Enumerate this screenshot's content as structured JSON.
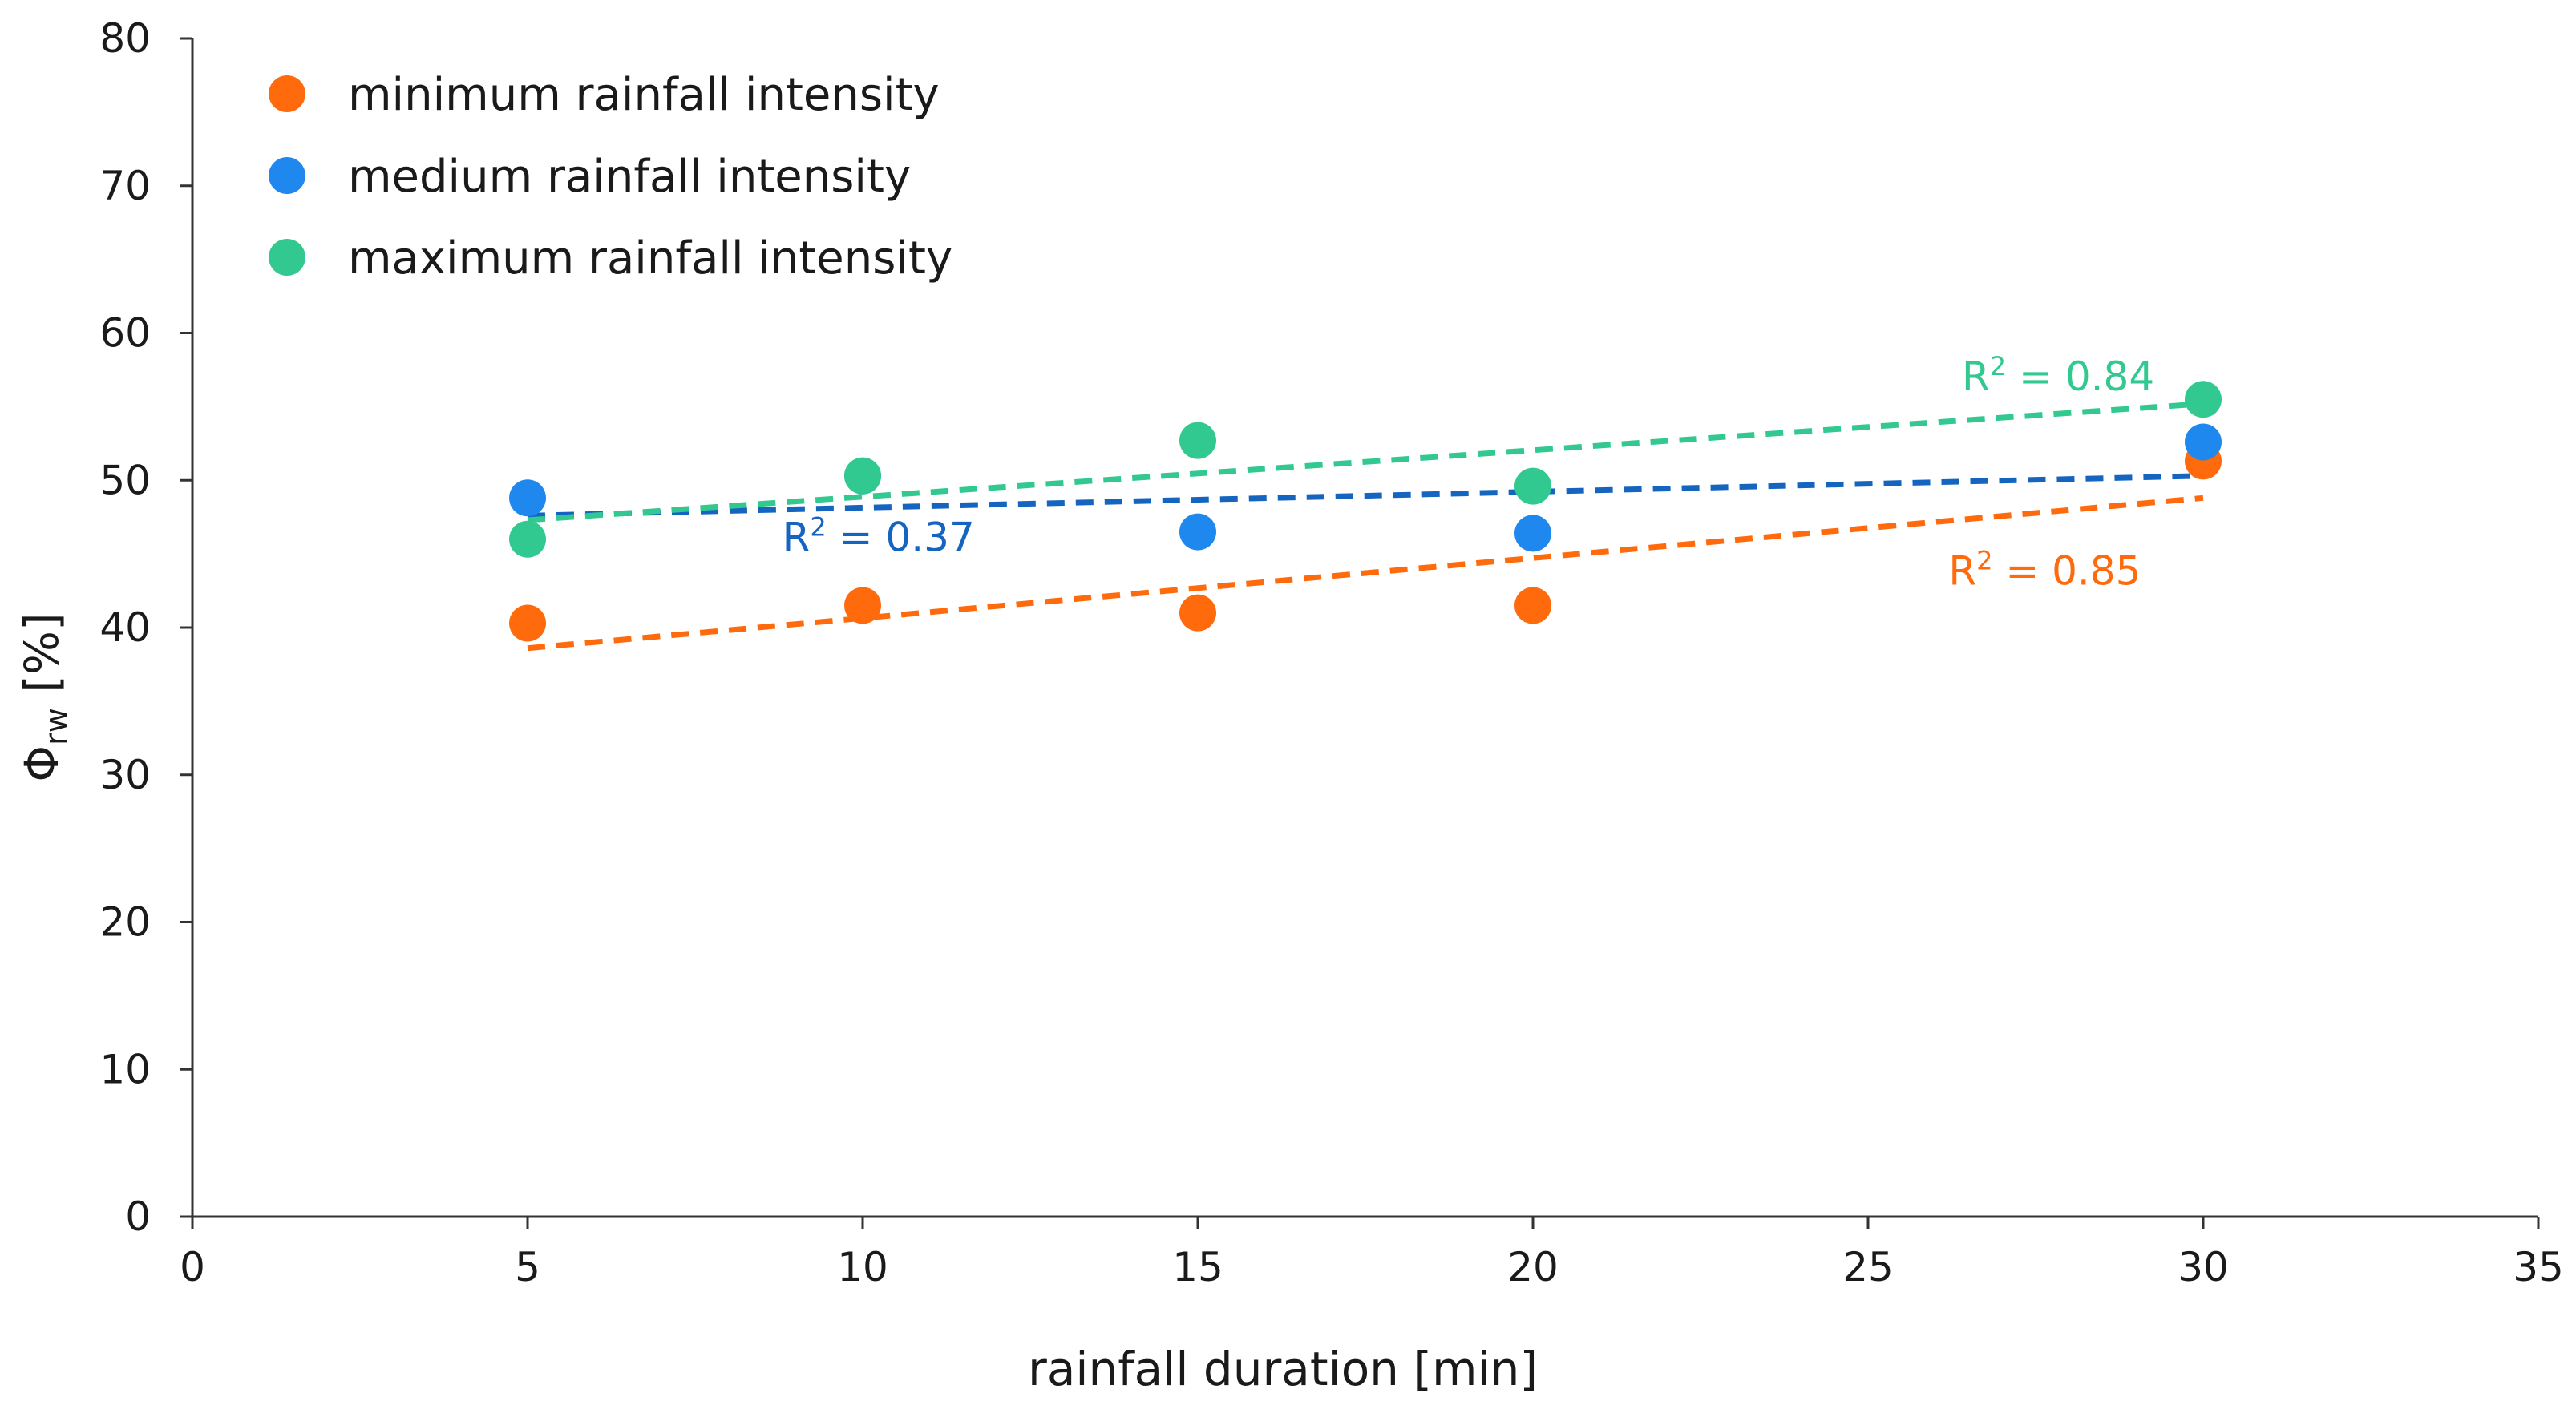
{
  "chart_data": {
    "type": "scatter",
    "xlabel": "rainfall duration [min]",
    "ylabel": {
      "base": "Φ",
      "subscript": "rw",
      "unit": " [%]"
    },
    "xlim": [
      0,
      35
    ],
    "ylim": [
      0,
      80
    ],
    "xticks": [
      0,
      5,
      10,
      15,
      20,
      25,
      30,
      35
    ],
    "yticks": [
      0,
      10,
      20,
      30,
      40,
      50,
      60,
      70,
      80
    ],
    "x": [
      5,
      10,
      15,
      20,
      30
    ],
    "series": [
      {
        "key": "min",
        "name": "minimum rainfall intensity",
        "color": "#ff6a0d",
        "values": [
          40.3,
          41.5,
          41.0,
          41.5,
          51.3
        ],
        "trend": {
          "x1": 5,
          "y1": 38.6,
          "x2": 30,
          "y2": 48.8
        },
        "r2": {
          "label": "R",
          "sup": "2",
          "value": " = 0.85",
          "at": [
            26.2,
            42.9
          ]
        }
      },
      {
        "key": "med",
        "name": "medium rainfall intensity",
        "color": "#1e88ee",
        "values": [
          48.8,
          50.3,
          46.5,
          46.4,
          52.6
        ],
        "trend": {
          "x1": 5,
          "y1": 47.6,
          "x2": 30,
          "y2": 50.3
        },
        "r2": {
          "label": "R",
          "sup": "2",
          "value": " = 0.37",
          "at": [
            8.8,
            45.2
          ]
        },
        "trend_color": "#1565c0"
      },
      {
        "key": "max",
        "name": "maximum rainfall intensity",
        "color": "#31c98f",
        "values": [
          46.0,
          50.3,
          52.7,
          49.6,
          55.5
        ],
        "trend": {
          "x1": 5,
          "y1": 47.3,
          "x2": 30,
          "y2": 55.2
        },
        "r2": {
          "label": "R",
          "sup": "2",
          "value": " = 0.84",
          "at": [
            26.4,
            56.1
          ]
        }
      }
    ],
    "legend_position": "top-left"
  }
}
